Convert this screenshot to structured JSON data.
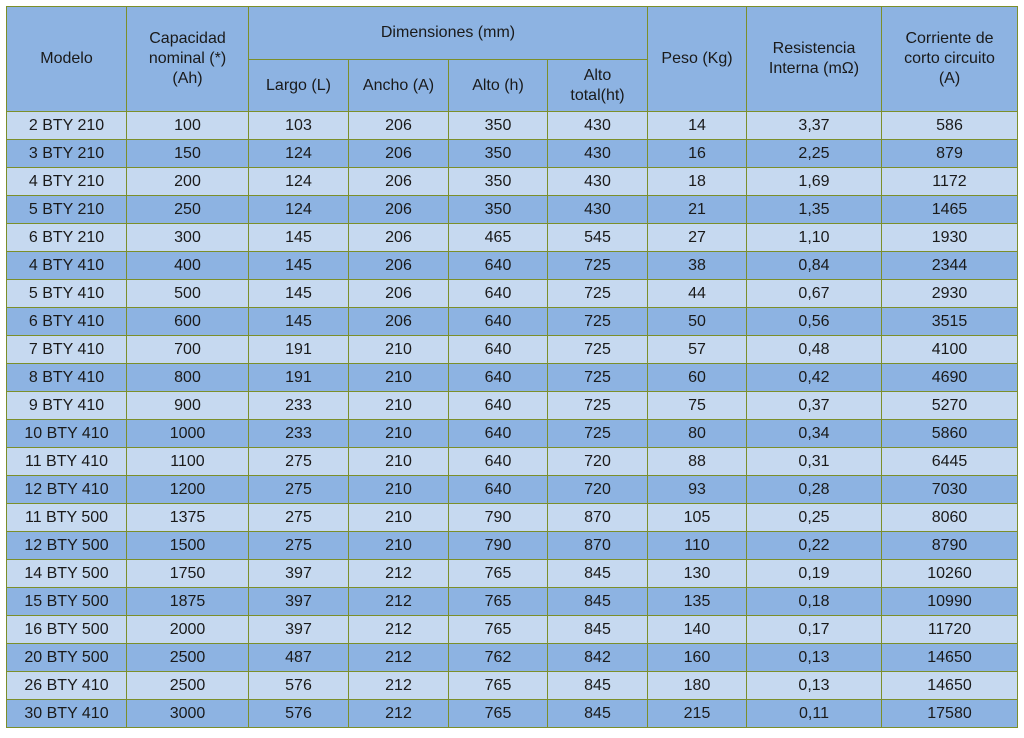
{
  "table": {
    "headers": {
      "modelo": "Modelo",
      "capacidad_line1": "Capacidad",
      "capacidad_line2": "nominal (*)",
      "capacidad_line3": "(Ah)",
      "dimensiones": "Dimensiones (mm)",
      "largo": "Largo (L)",
      "ancho": "Ancho (A)",
      "alto": "Alto (h)",
      "alto_total_line1": "Alto",
      "alto_total_line2": "total(ht)",
      "peso": "Peso (Kg)",
      "resistencia_line1": "Resistencia",
      "resistencia_line2": "Interna (mΩ)",
      "corriente_line1": "Corriente de",
      "corriente_line2": "corto circuito",
      "corriente_line3": "(A)"
    },
    "rows": [
      [
        "2 BTY 210",
        "100",
        "103",
        "206",
        "350",
        "430",
        "14",
        "3,37",
        "586"
      ],
      [
        "3 BTY 210",
        "150",
        "124",
        "206",
        "350",
        "430",
        "16",
        "2,25",
        "879"
      ],
      [
        "4 BTY 210",
        "200",
        "124",
        "206",
        "350",
        "430",
        "18",
        "1,69",
        "1172"
      ],
      [
        "5 BTY 210",
        "250",
        "124",
        "206",
        "350",
        "430",
        "21",
        "1,35",
        "1465"
      ],
      [
        "6 BTY 210",
        "300",
        "145",
        "206",
        "465",
        "545",
        "27",
        "1,10",
        "1930"
      ],
      [
        "4 BTY 410",
        "400",
        "145",
        "206",
        "640",
        "725",
        "38",
        "0,84",
        "2344"
      ],
      [
        "5 BTY 410",
        "500",
        "145",
        "206",
        "640",
        "725",
        "44",
        "0,67",
        "2930"
      ],
      [
        "6 BTY 410",
        "600",
        "145",
        "206",
        "640",
        "725",
        "50",
        "0,56",
        "3515"
      ],
      [
        "7 BTY 410",
        "700",
        "191",
        "210",
        "640",
        "725",
        "57",
        "0,48",
        "4100"
      ],
      [
        "8 BTY 410",
        "800",
        "191",
        "210",
        "640",
        "725",
        "60",
        "0,42",
        "4690"
      ],
      [
        "9 BTY 410",
        "900",
        "233",
        "210",
        "640",
        "725",
        "75",
        "0,37",
        "5270"
      ],
      [
        "10 BTY 410",
        "1000",
        "233",
        "210",
        "640",
        "725",
        "80",
        "0,34",
        "5860"
      ],
      [
        "11 BTY 410",
        "1100",
        "275",
        "210",
        "640",
        "720",
        "88",
        "0,31",
        "6445"
      ],
      [
        "12 BTY 410",
        "1200",
        "275",
        "210",
        "640",
        "720",
        "93",
        "0,28",
        "7030"
      ],
      [
        "11 BTY 500",
        "1375",
        "275",
        "210",
        "790",
        "870",
        "105",
        "0,25",
        "8060"
      ],
      [
        "12 BTY 500",
        "1500",
        "275",
        "210",
        "790",
        "870",
        "110",
        "0,22",
        "8790"
      ],
      [
        "14 BTY 500",
        "1750",
        "397",
        "212",
        "765",
        "845",
        "130",
        "0,19",
        "10260"
      ],
      [
        "15 BTY 500",
        "1875",
        "397",
        "212",
        "765",
        "845",
        "135",
        "0,18",
        "10990"
      ],
      [
        "16 BTY 500",
        "2000",
        "397",
        "212",
        "765",
        "845",
        "140",
        "0,17",
        "11720"
      ],
      [
        "20 BTY 500",
        "2500",
        "487",
        "212",
        "762",
        "842",
        "160",
        "0,13",
        "14650"
      ],
      [
        "26 BTY 410",
        "2500",
        "576",
        "212",
        "765",
        "845",
        "180",
        "0,13",
        "14650"
      ],
      [
        "30 BTY 410",
        "3000",
        "576",
        "212",
        "765",
        "845",
        "215",
        "0,11",
        "17580"
      ]
    ]
  },
  "colors": {
    "header_bg": "#8db3e2",
    "row_light": "#c6d9f0",
    "row_dark": "#8db3e2",
    "border": "#7c8f2a"
  }
}
